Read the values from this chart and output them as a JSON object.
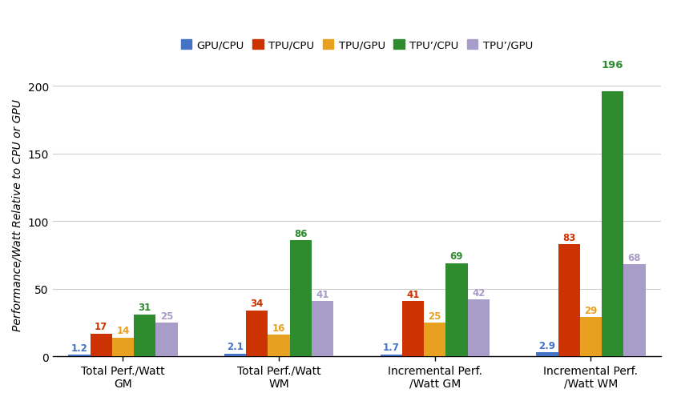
{
  "categories": [
    "Total Perf./Watt\nGM",
    "Total Perf./Watt\nWM",
    "Incremental Perf.\n/Watt GM",
    "Incremental Perf.\n/Watt WM"
  ],
  "series": [
    {
      "label": "GPU/CPU",
      "color": "#4472C4",
      "values": [
        1.2,
        2.1,
        1.7,
        2.9
      ]
    },
    {
      "label": "TPU/CPU",
      "color": "#CC3300",
      "values": [
        17,
        34,
        41,
        83
      ]
    },
    {
      "label": "TPU/GPU",
      "color": "#E8A020",
      "values": [
        14,
        16,
        25,
        29
      ]
    },
    {
      "label": "TPU’/CPU",
      "color": "#2E8B2E",
      "values": [
        31,
        86,
        69,
        196
      ]
    },
    {
      "label": "TPU’/GPU",
      "color": "#A89CC8",
      "values": [
        25,
        41,
        42,
        68
      ]
    }
  ],
  "ylabel": "Performance/Watt Relative to CPU or GPU",
  "ylim": [
    0,
    210
  ],
  "yticks": [
    0,
    50,
    100,
    150,
    200
  ],
  "bar_width": 0.14,
  "background_color": "#FFFFFF",
  "grid_color": "#CCCCCC",
  "annotation_fontsize": 8.5,
  "legend_fontsize": 9.5,
  "axis_label_fontsize": 10,
  "tick_label_fontsize": 10
}
